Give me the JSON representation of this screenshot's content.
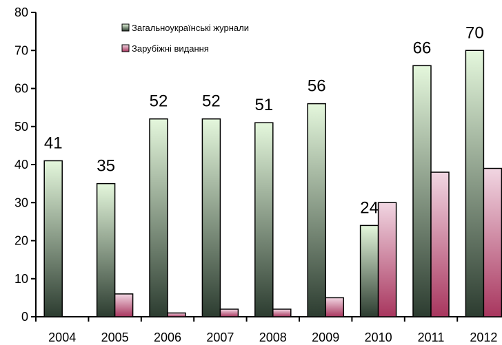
{
  "chart_data": {
    "type": "bar",
    "categories": [
      "2004",
      "2005",
      "2006",
      "2007",
      "2008",
      "2009",
      "2010",
      "2011",
      "2012"
    ],
    "series": [
      {
        "name": "Загальноукраїнські журнали",
        "values": [
          41,
          35,
          52,
          52,
          51,
          56,
          24,
          66,
          70
        ],
        "data_labels": [
          "41",
          "35",
          "52",
          "52",
          "51",
          "56",
          "24",
          "66",
          "70"
        ]
      },
      {
        "name": "Зарубіжні видання",
        "values": [
          0,
          6,
          1,
          2,
          2,
          5,
          30,
          38,
          39
        ]
      }
    ],
    "ylim": [
      0,
      80
    ],
    "yticks": [
      "0",
      "10",
      "20",
      "30",
      "40",
      "50",
      "60",
      "70",
      "80"
    ],
    "legend_position": "top",
    "grid": false,
    "colors": {
      "series1_top": "#e4f7dc",
      "series1_bottom": "#2c3c30",
      "series2_top": "#f1d6e2",
      "series2_bottom": "#a8365e",
      "axis": "#000000"
    }
  }
}
